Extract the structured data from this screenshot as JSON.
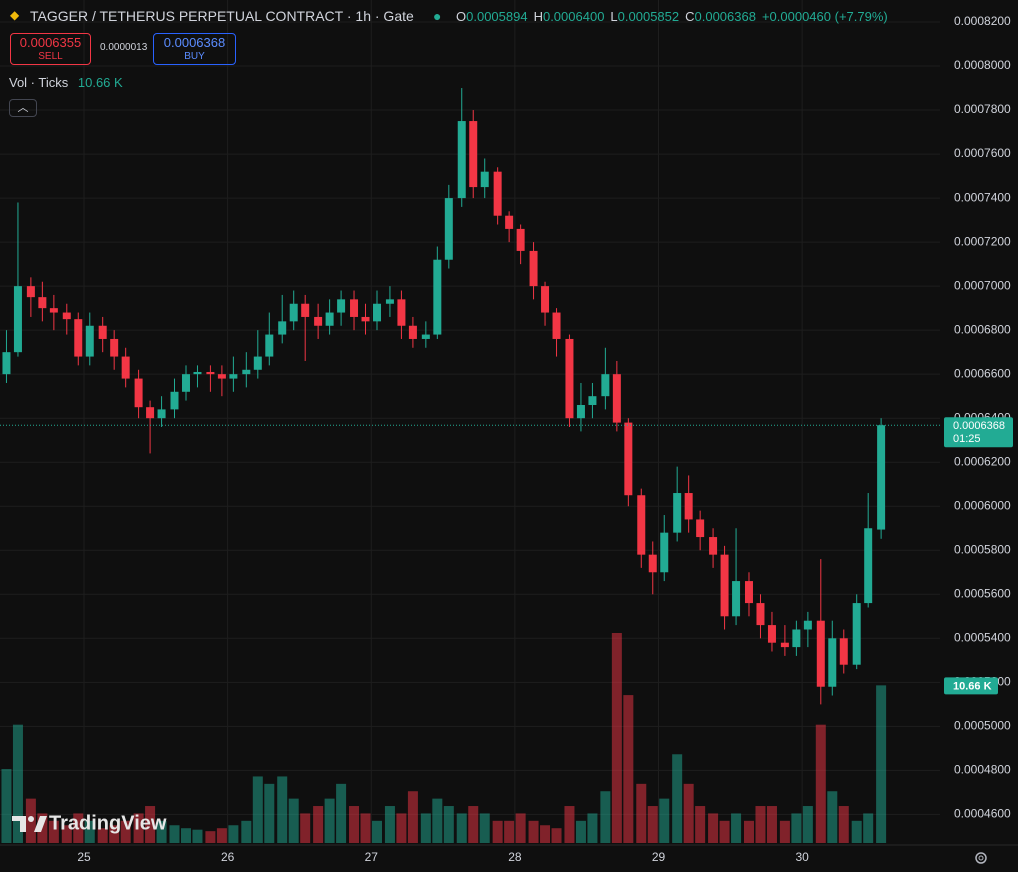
{
  "chart_data": {
    "type": "candlestick",
    "title": "TAGGER / TETHERUS PERPETUAL CONTRACT · 1h · Gate",
    "ohlc_legend": [
      {
        "key": "O",
        "text": "0.0005894"
      },
      {
        "key": "H",
        "text": "0.0006400"
      },
      {
        "key": "L",
        "text": "0.0005852"
      },
      {
        "key": "C",
        "text": "0.0006368"
      }
    ],
    "change_text": "+0.0000460 (+7.79%)",
    "sell": {
      "price": "0.0006355",
      "label": "SELL"
    },
    "spread": "0.0000013",
    "buy": {
      "price": "0.0006368",
      "label": "BUY"
    },
    "watermark": "TradingView",
    "up_color": "#22ab94",
    "down_color": "#f23645",
    "x": [
      24.46,
      24.54,
      24.63,
      24.71,
      24.79,
      24.88,
      24.96,
      25.04,
      25.13,
      25.21,
      25.29,
      25.38,
      25.46,
      25.54,
      25.63,
      25.71,
      25.79,
      25.88,
      25.96,
      26.04,
      26.13,
      26.21,
      26.29,
      26.38,
      26.46,
      26.54,
      26.63,
      26.71,
      26.79,
      26.88,
      26.96,
      27.04,
      27.13,
      27.21,
      27.29,
      27.38,
      27.46,
      27.54,
      27.63,
      27.71,
      27.79,
      27.88,
      27.96,
      28.04,
      28.13,
      28.21,
      28.29,
      28.38,
      28.46,
      28.54,
      28.63,
      28.71,
      28.79,
      28.88,
      28.96,
      29.04,
      29.13,
      29.21,
      29.29,
      29.38,
      29.46,
      29.54,
      29.63,
      29.71,
      29.79,
      29.88,
      29.96,
      30.04,
      30.13,
      30.21,
      30.29,
      30.38,
      30.46,
      30.55
    ],
    "open": [
      0.00066,
      0.00067,
      0.0007,
      0.000695,
      0.00069,
      0.000688,
      0.000685,
      0.000668,
      0.000682,
      0.000676,
      0.000668,
      0.000658,
      0.000645,
      0.00064,
      0.000644,
      0.000652,
      0.00066,
      0.000661,
      0.00066,
      0.000658,
      0.00066,
      0.000662,
      0.000668,
      0.000678,
      0.000684,
      0.000692,
      0.000686,
      0.000682,
      0.000688,
      0.000694,
      0.000686,
      0.000684,
      0.000692,
      0.000694,
      0.000682,
      0.000676,
      0.000678,
      0.000712,
      0.00074,
      0.000775,
      0.000745,
      0.000752,
      0.000732,
      0.000726,
      0.000716,
      0.0007,
      0.000688,
      0.000676,
      0.00064,
      0.000646,
      0.00065,
      0.00066,
      0.000638,
      0.000605,
      0.000578,
      0.00057,
      0.000588,
      0.000606,
      0.000594,
      0.000586,
      0.000578,
      0.00055,
      0.000566,
      0.000556,
      0.000546,
      0.000538,
      0.000536,
      0.000544,
      0.000548,
      0.000518,
      0.00054,
      0.000528,
      0.000556,
      0.0005894
    ],
    "high": [
      0.00068,
      0.000738,
      0.000704,
      0.000702,
      0.000696,
      0.000692,
      0.000688,
      0.000688,
      0.000686,
      0.00068,
      0.000672,
      0.000662,
      0.000648,
      0.00065,
      0.000658,
      0.000664,
      0.000664,
      0.000664,
      0.000664,
      0.000668,
      0.00067,
      0.00068,
      0.000688,
      0.000696,
      0.000698,
      0.000696,
      0.000692,
      0.000694,
      0.000698,
      0.000698,
      0.000692,
      0.000698,
      0.0007,
      0.000698,
      0.000686,
      0.000684,
      0.000718,
      0.000746,
      0.00079,
      0.00078,
      0.000758,
      0.000754,
      0.000734,
      0.000728,
      0.00072,
      0.000702,
      0.00069,
      0.000678,
      0.000656,
      0.000656,
      0.000672,
      0.000666,
      0.00064,
      0.000608,
      0.000584,
      0.000596,
      0.000618,
      0.000614,
      0.000598,
      0.00059,
      0.000582,
      0.00059,
      0.00057,
      0.00056,
      0.000552,
      0.000546,
      0.000548,
      0.000552,
      0.000576,
      0.000548,
      0.000544,
      0.00056,
      0.000606,
      0.00064
    ],
    "low": [
      0.000656,
      0.000668,
      0.000686,
      0.000684,
      0.00068,
      0.000678,
      0.000664,
      0.000664,
      0.00067,
      0.000662,
      0.000654,
      0.00064,
      0.000624,
      0.000636,
      0.00064,
      0.000648,
      0.000654,
      0.000652,
      0.00065,
      0.000652,
      0.000654,
      0.000658,
      0.000664,
      0.000674,
      0.00068,
      0.000666,
      0.000676,
      0.000678,
      0.000682,
      0.00068,
      0.000678,
      0.00068,
      0.000686,
      0.000676,
      0.000672,
      0.000672,
      0.000676,
      0.000708,
      0.000736,
      0.00074,
      0.00074,
      0.000728,
      0.00072,
      0.00071,
      0.000694,
      0.000682,
      0.000668,
      0.000636,
      0.000634,
      0.00064,
      0.000644,
      0.000634,
      0.0006,
      0.000572,
      0.00056,
      0.000566,
      0.000584,
      0.000588,
      0.00058,
      0.000572,
      0.000544,
      0.000546,
      0.00055,
      0.00054,
      0.000534,
      0.000532,
      0.000532,
      0.000536,
      0.00051,
      0.000514,
      0.000524,
      0.000526,
      0.000554,
      0.0005852
    ],
    "close": [
      0.00067,
      0.0007,
      0.000695,
      0.00069,
      0.000688,
      0.000685,
      0.000668,
      0.000682,
      0.000676,
      0.000668,
      0.000658,
      0.000645,
      0.00064,
      0.000644,
      0.000652,
      0.00066,
      0.000661,
      0.00066,
      0.000658,
      0.00066,
      0.000662,
      0.000668,
      0.000678,
      0.000684,
      0.000692,
      0.000686,
      0.000682,
      0.000688,
      0.000694,
      0.000686,
      0.000684,
      0.000692,
      0.000694,
      0.000682,
      0.000676,
      0.000678,
      0.000712,
      0.00074,
      0.000775,
      0.000745,
      0.000752,
      0.000732,
      0.000726,
      0.000716,
      0.0007,
      0.000688,
      0.000676,
      0.00064,
      0.000646,
      0.00065,
      0.00066,
      0.000638,
      0.000605,
      0.000578,
      0.00057,
      0.000588,
      0.000606,
      0.000594,
      0.000586,
      0.000578,
      0.00055,
      0.000566,
      0.000556,
      0.000546,
      0.000538,
      0.000536,
      0.000544,
      0.000548,
      0.000518,
      0.00054,
      0.000528,
      0.000556,
      0.00059,
      0.0006368
    ],
    "volume": {
      "name": "Vol · Ticks",
      "last_label": "10.66 K",
      "values": [
        5000,
        8000,
        3000,
        2000,
        1500,
        1200,
        2000,
        1500,
        1000,
        1200,
        1500,
        2000,
        2500,
        1500,
        1200,
        1000,
        900,
        800,
        1000,
        1200,
        1500,
        4500,
        4000,
        4500,
        3000,
        2000,
        2500,
        3000,
        4000,
        2500,
        2000,
        1500,
        2500,
        2000,
        3500,
        2000,
        3000,
        2500,
        2000,
        2500,
        2000,
        1500,
        1500,
        2000,
        1500,
        1200,
        1000,
        2500,
        1500,
        2000,
        3500,
        14200,
        10000,
        4000,
        2500,
        3000,
        6000,
        4000,
        2500,
        2000,
        1500,
        2000,
        1500,
        2500,
        2500,
        1500,
        2000,
        2500,
        8000,
        3500,
        2500,
        1500,
        2000,
        10660
      ]
    },
    "last_price": {
      "value": 0.0006368,
      "label": "0.0006368",
      "countdown": "01:25"
    },
    "xlim": [
      24.415,
      30.96
    ],
    "xticks": [
      25,
      26,
      27,
      28,
      29,
      30
    ],
    "ylim": [
      0.000447,
      0.00083
    ],
    "yticks": [
      {
        "value": 0.00046,
        "label": "0.0004600"
      },
      {
        "value": 0.00048,
        "label": "0.0004800"
      },
      {
        "value": 0.0005,
        "label": "0.0005000"
      },
      {
        "value": 0.00052,
        "label": "0.0005200"
      },
      {
        "value": 0.00054,
        "label": "0.0005400"
      },
      {
        "value": 0.00056,
        "label": "0.0005600"
      },
      {
        "value": 0.00058,
        "label": "0.0005800"
      },
      {
        "value": 0.0006,
        "label": "0.0006000"
      },
      {
        "value": 0.00062,
        "label": "0.0006200"
      },
      {
        "value": 0.00064,
        "label": "0.0006400"
      },
      {
        "value": 0.00066,
        "label": "0.0006600"
      },
      {
        "value": 0.00068,
        "label": "0.0006800"
      },
      {
        "value": 0.0007,
        "label": "0.0007000"
      },
      {
        "value": 0.00072,
        "label": "0.0007200"
      },
      {
        "value": 0.00074,
        "label": "0.0007400"
      },
      {
        "value": 0.00076,
        "label": "0.0007600"
      },
      {
        "value": 0.00078,
        "label": "0.0007800"
      },
      {
        "value": 0.0008,
        "label": "0.0008000"
      },
      {
        "value": 0.00082,
        "label": "0.0008200"
      }
    ],
    "grid": true
  }
}
